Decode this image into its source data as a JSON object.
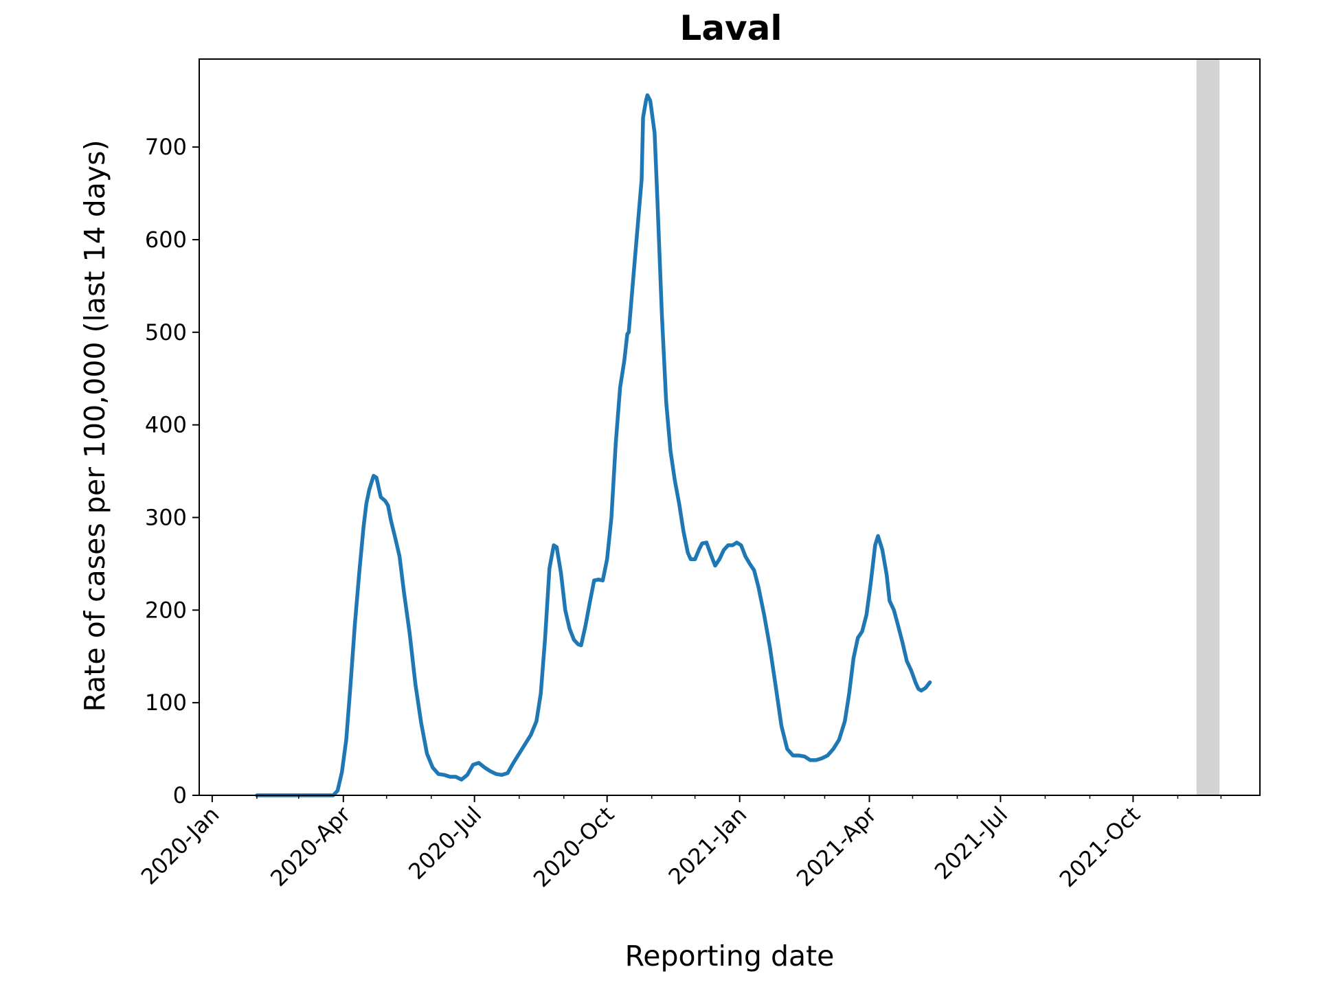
{
  "chart_data": {
    "type": "line",
    "title": "Laval",
    "xlabel": "Reporting date",
    "ylabel": "Rate of cases per 100,000 (last 14 days)",
    "xlim": [
      "2019-12-23",
      "2021-12-28"
    ],
    "ylim": [
      0,
      795
    ],
    "y_ticks": [
      0,
      100,
      200,
      300,
      400,
      500,
      600,
      700
    ],
    "x_ticks": [
      {
        "date": "2020-01-01",
        "label": "2020-Jan"
      },
      {
        "date": "2020-04-01",
        "label": "2020-Apr"
      },
      {
        "date": "2020-07-01",
        "label": "2020-Jul"
      },
      {
        "date": "2020-10-01",
        "label": "2020-Oct"
      },
      {
        "date": "2021-01-01",
        "label": "2021-Jan"
      },
      {
        "date": "2021-04-01",
        "label": "2021-Apr"
      },
      {
        "date": "2021-07-01",
        "label": "2021-Jul"
      },
      {
        "date": "2021-10-01",
        "label": "2021-Oct"
      }
    ],
    "x_minor_ticks": [
      "2020-02-01",
      "2020-03-01",
      "2020-05-01",
      "2020-06-01",
      "2020-08-01",
      "2020-09-01",
      "2020-11-01",
      "2020-12-01",
      "2021-02-01",
      "2021-03-01",
      "2021-05-01",
      "2021-06-01",
      "2021-08-01",
      "2021-09-01",
      "2021-11-01",
      "2021-12-01"
    ],
    "shaded_region": {
      "start": "2021-11-14",
      "end": "2021-11-30",
      "color": "#d3d3d3"
    },
    "grid": false,
    "series": [
      {
        "color": "#1f77b4",
        "points": [
          [
            "2020-02-01",
            0
          ],
          [
            "2020-03-01",
            0
          ],
          [
            "2020-03-25",
            0
          ],
          [
            "2020-03-28",
            5
          ],
          [
            "2020-03-31",
            25
          ],
          [
            "2020-04-03",
            60
          ],
          [
            "2020-04-06",
            120
          ],
          [
            "2020-04-09",
            185
          ],
          [
            "2020-04-12",
            240
          ],
          [
            "2020-04-15",
            290
          ],
          [
            "2020-04-17",
            315
          ],
          [
            "2020-04-19",
            330
          ],
          [
            "2020-04-22",
            345
          ],
          [
            "2020-04-24",
            343
          ],
          [
            "2020-04-27",
            322
          ],
          [
            "2020-04-30",
            318
          ],
          [
            "2020-05-02",
            313
          ],
          [
            "2020-05-04",
            297
          ],
          [
            "2020-05-07",
            278
          ],
          [
            "2020-05-10",
            258
          ],
          [
            "2020-05-13",
            220
          ],
          [
            "2020-05-17",
            175
          ],
          [
            "2020-05-21",
            120
          ],
          [
            "2020-05-25",
            78
          ],
          [
            "2020-05-29",
            45
          ],
          [
            "2020-06-02",
            30
          ],
          [
            "2020-06-06",
            23
          ],
          [
            "2020-06-10",
            22
          ],
          [
            "2020-06-14",
            20
          ],
          [
            "2020-06-18",
            20
          ],
          [
            "2020-06-22",
            17
          ],
          [
            "2020-06-26",
            22
          ],
          [
            "2020-06-30",
            33
          ],
          [
            "2020-07-04",
            35
          ],
          [
            "2020-07-08",
            30
          ],
          [
            "2020-07-12",
            26
          ],
          [
            "2020-07-16",
            23
          ],
          [
            "2020-07-20",
            22
          ],
          [
            "2020-07-24",
            24
          ],
          [
            "2020-07-28",
            35
          ],
          [
            "2020-08-01",
            45
          ],
          [
            "2020-08-05",
            55
          ],
          [
            "2020-08-09",
            65
          ],
          [
            "2020-08-13",
            80
          ],
          [
            "2020-08-16",
            110
          ],
          [
            "2020-08-19",
            170
          ],
          [
            "2020-08-22",
            245
          ],
          [
            "2020-08-25",
            270
          ],
          [
            "2020-08-27",
            268
          ],
          [
            "2020-08-30",
            240
          ],
          [
            "2020-09-02",
            200
          ],
          [
            "2020-09-05",
            180
          ],
          [
            "2020-09-08",
            168
          ],
          [
            "2020-09-11",
            163
          ],
          [
            "2020-09-13",
            162
          ],
          [
            "2020-09-16",
            183
          ],
          [
            "2020-09-19",
            208
          ],
          [
            "2020-09-22",
            232
          ],
          [
            "2020-09-25",
            233
          ],
          [
            "2020-09-28",
            232
          ],
          [
            "2020-10-01",
            255
          ],
          [
            "2020-10-04",
            300
          ],
          [
            "2020-10-07",
            380
          ],
          [
            "2020-10-10",
            440
          ],
          [
            "2020-10-13",
            470
          ],
          [
            "2020-10-15",
            498
          ],
          [
            "2020-10-16",
            500
          ],
          [
            "2020-10-19",
            555
          ],
          [
            "2020-10-22",
            610
          ],
          [
            "2020-10-25",
            665
          ],
          [
            "2020-10-26",
            732
          ],
          [
            "2020-10-28",
            750
          ],
          [
            "2020-10-29",
            756
          ],
          [
            "2020-10-31",
            750
          ],
          [
            "2020-11-03",
            715
          ],
          [
            "2020-11-05",
            640
          ],
          [
            "2020-11-08",
            520
          ],
          [
            "2020-11-11",
            425
          ],
          [
            "2020-11-14",
            372
          ],
          [
            "2020-11-17",
            340
          ],
          [
            "2020-11-20",
            315
          ],
          [
            "2020-11-23",
            285
          ],
          [
            "2020-11-26",
            262
          ],
          [
            "2020-11-28",
            255
          ],
          [
            "2020-12-01",
            255
          ],
          [
            "2020-12-04",
            266
          ],
          [
            "2020-12-06",
            272
          ],
          [
            "2020-12-09",
            273
          ],
          [
            "2020-12-12",
            260
          ],
          [
            "2020-12-15",
            248
          ],
          [
            "2020-12-18",
            255
          ],
          [
            "2020-12-21",
            265
          ],
          [
            "2020-12-24",
            270
          ],
          [
            "2020-12-27",
            270
          ],
          [
            "2020-12-30",
            273
          ],
          [
            "2021-01-02",
            270
          ],
          [
            "2021-01-05",
            258
          ],
          [
            "2021-01-08",
            250
          ],
          [
            "2021-01-11",
            243
          ],
          [
            "2021-01-14",
            225
          ],
          [
            "2021-01-18",
            195
          ],
          [
            "2021-01-22",
            160
          ],
          [
            "2021-01-26",
            118
          ],
          [
            "2021-01-30",
            75
          ],
          [
            "2021-02-03",
            50
          ],
          [
            "2021-02-07",
            43
          ],
          [
            "2021-02-11",
            43
          ],
          [
            "2021-02-15",
            42
          ],
          [
            "2021-02-19",
            38
          ],
          [
            "2021-02-23",
            38
          ],
          [
            "2021-02-27",
            40
          ],
          [
            "2021-03-03",
            43
          ],
          [
            "2021-03-07",
            50
          ],
          [
            "2021-03-11",
            60
          ],
          [
            "2021-03-15",
            80
          ],
          [
            "2021-03-18",
            110
          ],
          [
            "2021-03-21",
            148
          ],
          [
            "2021-03-24",
            170
          ],
          [
            "2021-03-27",
            177
          ],
          [
            "2021-03-30",
            195
          ],
          [
            "2021-04-02",
            230
          ],
          [
            "2021-04-05",
            270
          ],
          [
            "2021-04-07",
            280
          ],
          [
            "2021-04-10",
            265
          ],
          [
            "2021-04-13",
            238
          ],
          [
            "2021-04-15",
            210
          ],
          [
            "2021-04-18",
            200
          ],
          [
            "2021-04-21",
            183
          ],
          [
            "2021-04-24",
            165
          ],
          [
            "2021-04-27",
            145
          ],
          [
            "2021-04-30",
            135
          ],
          [
            "2021-05-03",
            122
          ],
          [
            "2021-05-05",
            115
          ],
          [
            "2021-05-07",
            113
          ],
          [
            "2021-05-10",
            116
          ],
          [
            "2021-05-13",
            122
          ]
        ]
      }
    ]
  }
}
